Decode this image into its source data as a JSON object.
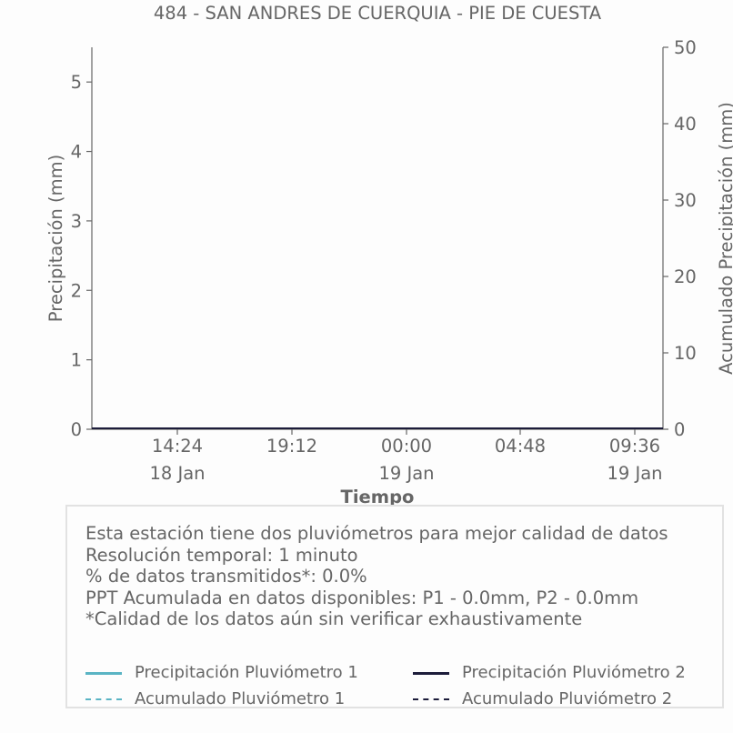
{
  "chart_data": {
    "type": "line",
    "title": "484 - SAN ANDRES DE CUERQUIA - PIE DE CUESTA",
    "xlabel": "Tiempo",
    "ylabel": "Precipitación (mm)",
    "y2label": "Acumulado Precipitación (mm)",
    "ylim": [
      0,
      5.5
    ],
    "y2lim": [
      0,
      50
    ],
    "yticks": [
      "0",
      "1",
      "2",
      "3",
      "4",
      "5"
    ],
    "y2ticks": [
      "0",
      "10",
      "20",
      "30",
      "40",
      "50"
    ],
    "xticks": [
      {
        "time": "14:24",
        "date": "18 Jan"
      },
      {
        "time": "19:12",
        "date": ""
      },
      {
        "time": "00:00",
        "date": "19 Jan"
      },
      {
        "time": "04:48",
        "date": ""
      },
      {
        "time": "09:36",
        "date": "19 Jan"
      }
    ],
    "series": [
      {
        "name": "Precipitación Pluviómetro 1",
        "axis": "left",
        "style": "solid",
        "color": "#5ab4c4",
        "values": [
          0,
          0
        ]
      },
      {
        "name": "Acumulado Pluviómetro 1",
        "axis": "right",
        "style": "dashed",
        "color": "#5ab4c4",
        "values": [
          0,
          0
        ]
      },
      {
        "name": "Precipitación Pluviómetro 2",
        "axis": "left",
        "style": "solid",
        "color": "#1c1c3a",
        "values": [
          0,
          0
        ]
      },
      {
        "name": "Acumulado Pluviómetro 2",
        "axis": "right",
        "style": "dashed",
        "color": "#1c1c3a",
        "values": [
          0,
          0
        ]
      }
    ],
    "grid": false,
    "legend": "bottom"
  },
  "info": {
    "lines": [
      "Esta estación tiene dos pluviómetros para mejor calidad de datos",
      "Resolución temporal: 1 minuto",
      "% de datos transmitidos*: 0.0%",
      "PPT Acumulada en datos disponibles: P1 - 0.0mm, P2 - 0.0mm",
      "*Calidad de los datos aún sin verificar exhaustivamente"
    ]
  },
  "legend": {
    "items": [
      {
        "label": "Precipitación Pluviómetro 1",
        "color": "#5ab4c4",
        "style": "solid"
      },
      {
        "label": "Precipitación Pluviómetro 2",
        "color": "#1c1c3a",
        "style": "solid"
      },
      {
        "label": "Acumulado Pluviómetro 1",
        "color": "#5ab4c4",
        "style": "dashed"
      },
      {
        "label": "Acumulado Pluviómetro 2",
        "color": "#1c1c3a",
        "style": "dashed"
      }
    ]
  }
}
